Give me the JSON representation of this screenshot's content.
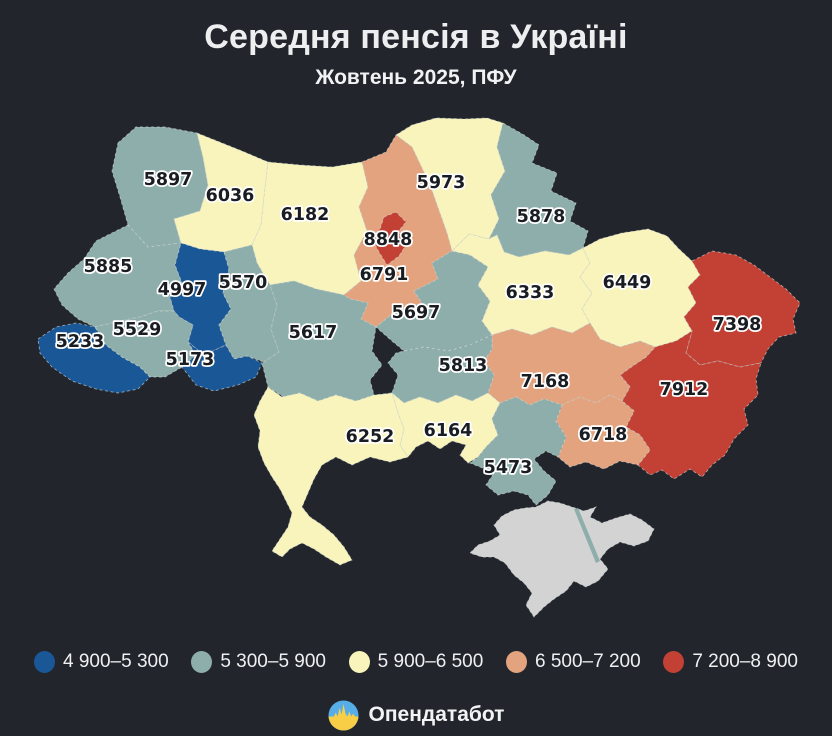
{
  "header": {
    "title": "Середня пенсія в Україні",
    "subtitle": "Жовтень 2025, ПФУ"
  },
  "colors": {
    "background": "#22262c",
    "text": "#eceef0",
    "label": "#191d22",
    "label_halo": "#ffffff",
    "no_data": "#d3d3d3",
    "border_dash": "#cfd8d8"
  },
  "legend": [
    {
      "label": "4 900–5 300",
      "color": "#1a5796"
    },
    {
      "label": "5 300–5 900",
      "color": "#8eaeab"
    },
    {
      "label": "5 900–6 500",
      "color": "#f8f4bc"
    },
    {
      "label": "6 500–7 200",
      "color": "#e3a37e"
    },
    {
      "label": "7 200–8 900",
      "color": "#c24134"
    }
  ],
  "footer": {
    "brand": "Опендатабот"
  },
  "chart_data": {
    "type": "choropleth",
    "title": "Середня пенсія в Україні",
    "subtitle": "Жовтень 2025, ПФУ",
    "legend_bins": [
      "4 900–5 300",
      "5 300–5 900",
      "5 900–6 500",
      "6 500–7 200",
      "7 200–8 900"
    ],
    "regions": [
      {
        "id": "volyn",
        "region": "Волинська",
        "value": 5897,
        "range": "5 300–5 900"
      },
      {
        "id": "rivne",
        "region": "Рівненська",
        "value": 6036,
        "range": "5 900–6 500"
      },
      {
        "id": "zhytomyr",
        "region": "Житомирська",
        "value": 6182,
        "range": "5 900–6 500"
      },
      {
        "id": "kyiv-oblast",
        "region": "Київська",
        "value": 6791,
        "range": "6 500–7 200"
      },
      {
        "id": "kyiv-city",
        "region": "м. Київ",
        "value": 8848,
        "range": "7 200–8 900"
      },
      {
        "id": "chernihiv",
        "region": "Чернігівська",
        "value": 5973,
        "range": "5 900–6 500"
      },
      {
        "id": "sumy",
        "region": "Сумська",
        "value": 5878,
        "range": "5 300–5 900"
      },
      {
        "id": "lviv",
        "region": "Львівська",
        "value": 5885,
        "range": "5 300–5 900"
      },
      {
        "id": "ternopil",
        "region": "Тернопільська",
        "value": 4997,
        "range": "4 900–5 300"
      },
      {
        "id": "khmelnytskyi",
        "region": "Хмельницька",
        "value": 5570,
        "range": "5 300–5 900"
      },
      {
        "id": "zakarpattia",
        "region": "Закарпатська",
        "value": 5233,
        "range": "4 900–5 300"
      },
      {
        "id": "ivano-frankivsk",
        "region": "Івано-Франківська",
        "value": 5529,
        "range": "5 300–5 900"
      },
      {
        "id": "chernivtsi",
        "region": "Чернівецька",
        "value": 5173,
        "range": "4 900–5 300"
      },
      {
        "id": "vinnytsia",
        "region": "Вінницька",
        "value": 5617,
        "range": "5 300–5 900"
      },
      {
        "id": "cherkasy",
        "region": "Черкаська",
        "value": 5697,
        "range": "5 300–5 900"
      },
      {
        "id": "poltava",
        "region": "Полтавська",
        "value": 6333,
        "range": "5 900–6 500"
      },
      {
        "id": "kharkiv",
        "region": "Харківська",
        "value": 6449,
        "range": "5 900–6 500"
      },
      {
        "id": "luhansk",
        "region": "Луганська",
        "value": 7398,
        "range": "7 200–8 900"
      },
      {
        "id": "donetsk",
        "region": "Донецька",
        "value": 7912,
        "range": "7 200–8 900"
      },
      {
        "id": "dnipropetrovsk",
        "region": "Дніпропетровська",
        "value": 7168,
        "range": "6 500–7 200"
      },
      {
        "id": "kirovohrad",
        "region": "Кіровоградська",
        "value": 5813,
        "range": "5 300–5 900"
      },
      {
        "id": "zaporizhzhia",
        "region": "Запорізька",
        "value": 6718,
        "range": "6 500–7 200"
      },
      {
        "id": "mykolaiv",
        "region": "Миколаївська",
        "value": 6164,
        "range": "5 900–6 500"
      },
      {
        "id": "odesa",
        "region": "Одеська",
        "value": 6252,
        "range": "5 900–6 500"
      },
      {
        "id": "kherson",
        "region": "Херсонська",
        "value": 5473,
        "range": "5 300–5 900"
      },
      {
        "id": "crimea",
        "region": "АР Крим",
        "value": null,
        "range": null
      }
    ]
  }
}
